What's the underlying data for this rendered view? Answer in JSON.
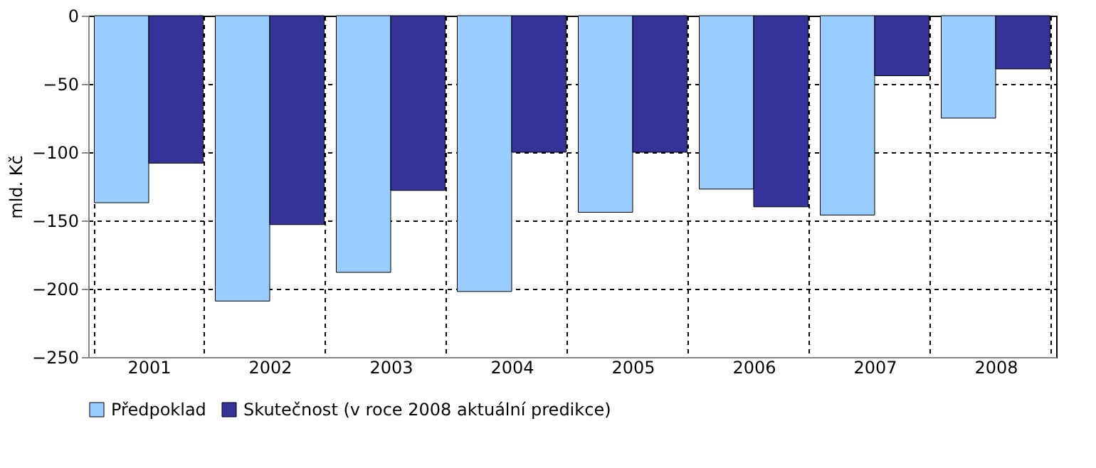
{
  "chart_data": {
    "type": "bar",
    "ylabel": "mld. Kč",
    "categories": [
      "2001",
      "2002",
      "2003",
      "2004",
      "2005",
      "2006",
      "2007",
      "2008"
    ],
    "series": [
      {
        "name": "Předpoklad",
        "color": "#99ccff",
        "values": [
          -137,
          -209,
          -188,
          -202,
          -144,
          -127,
          -146,
          -75
        ]
      },
      {
        "name": "Skutečnost (v roce 2008 aktuální predikce)",
        "color": "#333399",
        "values": [
          -108,
          -153,
          -128,
          -100,
          -100,
          -140,
          -44,
          -39
        ]
      }
    ],
    "ylim": [
      -250,
      0
    ],
    "yticks": [
      -250,
      -200,
      -150,
      -100,
      -50,
      0
    ],
    "grid": true,
    "legend": "bottom"
  }
}
